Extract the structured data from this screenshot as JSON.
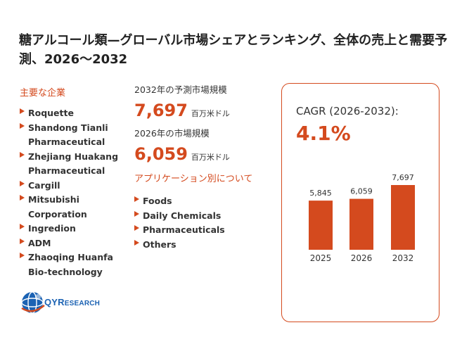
{
  "title": "糖アルコール類—グローバル市場シェアとランキング、全体の売上と需要予測、2026～2032",
  "key_players": {
    "heading": "主要な企業",
    "items": [
      "Roquette",
      "Shandong Tianli Pharmaceutical",
      "Zhejiang Huakang Pharmaceutical",
      "Cargill",
      "Mitsubishi Corporation",
      "Ingredion",
      "ADM",
      "Zhaoqing Huanfa Bio-technology"
    ]
  },
  "forecast": {
    "label": "2032年の予測市場規模",
    "value": "7,697",
    "unit": "百万米ドル"
  },
  "current": {
    "label": "2026年の市場規模",
    "value": "6,059",
    "unit": "百万米ドル"
  },
  "applications": {
    "heading": "アプリケーション別について",
    "items": [
      "Foods",
      "Daily Chemicals",
      "Pharmaceuticals",
      "Others"
    ]
  },
  "cagr": {
    "label": "CAGR (2026-2032):",
    "value": "4.1%"
  },
  "chart_data": {
    "type": "bar",
    "categories": [
      "2025",
      "2026",
      "2032"
    ],
    "values": [
      5845,
      6059,
      7697
    ],
    "value_labels": [
      "5,845",
      "6,059",
      "7,697"
    ],
    "ylim": [
      0,
      7697
    ],
    "grid": false,
    "bar_color": "#d44a1e"
  },
  "logo": {
    "text": "QYRESEARCH"
  },
  "colors": {
    "accent": "#d44a1e",
    "logo_blue": "#1b62b3"
  }
}
